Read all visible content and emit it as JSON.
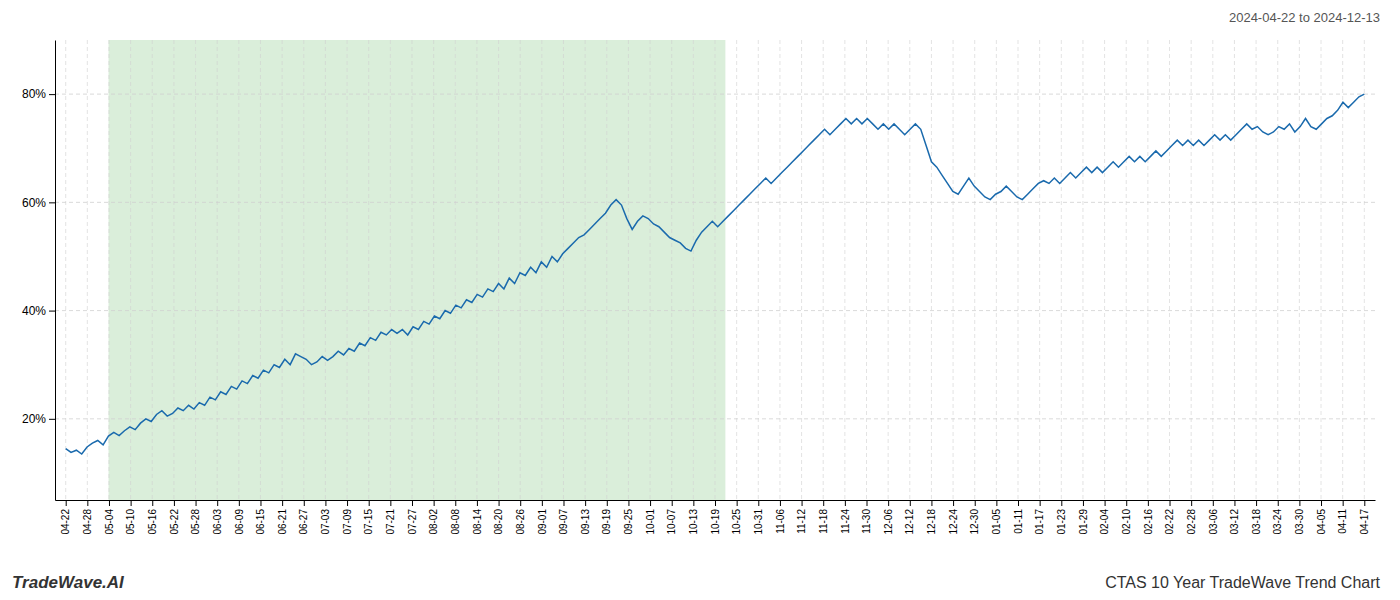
{
  "chart_data": {
    "type": "line",
    "title": "CTAS 10 Year TradeWave Trend Chart",
    "subtitle": "2024-04-22 to 2024-12-13",
    "annotations": [
      "TradeWave.AI"
    ],
    "color": "#1a6aad",
    "grid": true,
    "shaded_x": [
      8.019,
      123.444
    ],
    "shaded_color": "#daeeda",
    "xlim": [
      -2,
      245
    ],
    "xticks": [
      {
        "value": 0,
        "label": "04-22"
      },
      {
        "value": 4.05,
        "label": "04-28"
      },
      {
        "value": 8.1,
        "label": "05-04"
      },
      {
        "value": 12.15,
        "label": "05-10"
      },
      {
        "value": 16.2,
        "label": "05-16"
      },
      {
        "value": 20.25,
        "label": "05-22"
      },
      {
        "value": 24.3,
        "label": "05-28"
      },
      {
        "value": 28.35,
        "label": "06-03"
      },
      {
        "value": 32.4,
        "label": "06-09"
      },
      {
        "value": 36.45,
        "label": "06-15"
      },
      {
        "value": 40.5,
        "label": "06-21"
      },
      {
        "value": 44.55,
        "label": "06-27"
      },
      {
        "value": 48.6,
        "label": "07-03"
      },
      {
        "value": 52.65,
        "label": "07-09"
      },
      {
        "value": 56.7,
        "label": "07-15"
      },
      {
        "value": 60.75,
        "label": "07-21"
      },
      {
        "value": 64.8,
        "label": "07-27"
      },
      {
        "value": 68.85,
        "label": "08-02"
      },
      {
        "value": 72.9,
        "label": "08-08"
      },
      {
        "value": 76.95,
        "label": "08-14"
      },
      {
        "value": 81,
        "label": "08-20"
      },
      {
        "value": 85.05,
        "label": "08-26"
      },
      {
        "value": 89.1,
        "label": "09-01"
      },
      {
        "value": 93.15,
        "label": "09-07"
      },
      {
        "value": 97.2,
        "label": "09-13"
      },
      {
        "value": 101.25,
        "label": "09-19"
      },
      {
        "value": 105.3,
        "label": "09-25"
      },
      {
        "value": 109.35,
        "label": "10-01"
      },
      {
        "value": 113.4,
        "label": "10-07"
      },
      {
        "value": 117.45,
        "label": "10-13"
      },
      {
        "value": 121.5,
        "label": "10-19"
      },
      {
        "value": 125.55,
        "label": "10-25"
      },
      {
        "value": 129.6,
        "label": "10-31"
      },
      {
        "value": 133.65,
        "label": "11-06"
      },
      {
        "value": 137.7,
        "label": "11-12"
      },
      {
        "value": 141.75,
        "label": "11-18"
      },
      {
        "value": 145.8,
        "label": "11-24"
      },
      {
        "value": 149.85,
        "label": "11-30"
      },
      {
        "value": 153.9,
        "label": "12-06"
      },
      {
        "value": 157.95,
        "label": "12-12"
      },
      {
        "value": 162,
        "label": "12-18"
      },
      {
        "value": 166.05,
        "label": "12-24"
      },
      {
        "value": 170.1,
        "label": "12-30"
      },
      {
        "value": 174.15,
        "label": "01-05"
      },
      {
        "value": 178.2,
        "label": "01-11"
      },
      {
        "value": 182.25,
        "label": "01-17"
      },
      {
        "value": 186.3,
        "label": "01-23"
      },
      {
        "value": 190.35,
        "label": "01-29"
      },
      {
        "value": 194.4,
        "label": "02-04"
      },
      {
        "value": 198.45,
        "label": "02-10"
      },
      {
        "value": 202.5,
        "label": "02-16"
      },
      {
        "value": 206.55,
        "label": "02-22"
      },
      {
        "value": 210.6,
        "label": "02-28"
      },
      {
        "value": 214.65,
        "label": "03-06"
      },
      {
        "value": 218.7,
        "label": "03-12"
      },
      {
        "value": 222.75,
        "label": "03-18"
      },
      {
        "value": 226.8,
        "label": "03-24"
      },
      {
        "value": 230.85,
        "label": "03-30"
      },
      {
        "value": 234.9,
        "label": "04-05"
      },
      {
        "value": 238.95,
        "label": "04-11"
      },
      {
        "value": 243,
        "label": "04-17"
      }
    ],
    "ylim": [
      5,
      90
    ],
    "yticks": [
      {
        "value": 20,
        "label": "20%"
      },
      {
        "value": 40,
        "label": "40%"
      },
      {
        "value": 60,
        "label": "60%"
      },
      {
        "value": 80,
        "label": "80%"
      }
    ],
    "x": [
      0,
      1,
      2,
      3,
      4,
      5,
      6,
      7,
      8,
      9,
      10,
      11,
      12,
      13,
      14,
      15,
      16,
      17,
      18,
      19,
      20,
      21,
      22,
      23,
      24,
      25,
      26,
      27,
      28,
      29,
      30,
      31,
      32,
      33,
      34,
      35,
      36,
      37,
      38,
      39,
      40,
      41,
      42,
      43,
      44,
      45,
      46,
      47,
      48,
      49,
      50,
      51,
      52,
      53,
      54,
      55,
      56,
      57,
      58,
      59,
      60,
      61,
      62,
      63,
      64,
      65,
      66,
      67,
      68,
      69,
      70,
      71,
      72,
      73,
      74,
      75,
      76,
      77,
      78,
      79,
      80,
      81,
      82,
      83,
      84,
      85,
      86,
      87,
      88,
      89,
      90,
      91,
      92,
      93,
      94,
      95,
      96,
      97,
      98,
      99,
      100,
      101,
      102,
      103,
      104,
      105,
      106,
      107,
      108,
      109,
      110,
      111,
      112,
      113,
      114,
      115,
      116,
      117,
      118,
      119,
      120,
      121,
      122,
      123,
      124,
      125,
      126,
      127,
      128,
      129,
      130,
      131,
      132,
      133,
      134,
      135,
      136,
      137,
      138,
      139,
      140,
      141,
      142,
      143,
      144,
      145,
      146,
      147,
      148,
      149,
      150,
      151,
      152,
      153,
      154,
      155,
      156,
      157,
      158,
      159,
      160,
      161,
      162,
      163,
      164,
      165,
      166,
      167,
      168,
      169,
      170,
      171,
      172,
      173,
      174,
      175,
      176,
      177,
      178,
      179,
      180,
      181,
      182,
      183,
      184,
      185,
      186,
      187,
      188,
      189,
      190,
      191,
      192,
      193,
      194,
      195,
      196,
      197,
      198,
      199,
      200,
      201,
      202,
      203,
      204,
      205,
      206,
      207,
      208,
      209,
      210,
      211,
      212,
      213,
      214,
      215,
      216,
      217,
      218,
      219,
      220,
      221,
      222,
      223,
      224,
      225,
      226,
      227,
      228,
      229,
      230,
      231,
      232,
      233,
      234,
      235,
      236,
      237,
      238,
      239,
      240,
      241,
      242,
      243
    ],
    "values": [
      14.5,
      13.8,
      14.2,
      13.5,
      14.8,
      15.5,
      16.0,
      15.2,
      16.8,
      17.5,
      16.9,
      17.8,
      18.5,
      18.0,
      19.2,
      20.0,
      19.5,
      20.8,
      21.5,
      20.5,
      21.0,
      22.0,
      21.5,
      22.5,
      21.8,
      23.0,
      22.5,
      24.0,
      23.5,
      25.0,
      24.5,
      26.0,
      25.5,
      27.0,
      26.5,
      28.0,
      27.5,
      29.0,
      28.5,
      30.0,
      29.5,
      31.0,
      30.0,
      32.0,
      31.5,
      31.0,
      30.0,
      30.5,
      31.5,
      30.8,
      31.5,
      32.5,
      31.8,
      33.0,
      32.5,
      34.0,
      33.5,
      35.0,
      34.5,
      36.0,
      35.5,
      36.5,
      35.8,
      36.5,
      35.5,
      37.0,
      36.5,
      38.0,
      37.5,
      39.0,
      38.5,
      40.0,
      39.5,
      41.0,
      40.5,
      42.0,
      41.5,
      43.0,
      42.5,
      44.0,
      43.5,
      45.0,
      44.0,
      46.0,
      45.0,
      47.0,
      46.5,
      48.0,
      47.0,
      49.0,
      48.0,
      50.0,
      49.0,
      50.5,
      51.5,
      52.5,
      53.5,
      54.0,
      55.0,
      56.0,
      57.0,
      58.0,
      59.5,
      60.5,
      59.5,
      57.0,
      55.0,
      56.5,
      57.5,
      57.0,
      56.0,
      55.5,
      54.5,
      53.5,
      53.0,
      52.5,
      51.5,
      51.0,
      53.0,
      54.5,
      55.5,
      56.5,
      55.5,
      56.5,
      57.5,
      58.5,
      59.5,
      60.5,
      61.5,
      62.5,
      63.5,
      64.5,
      63.5,
      64.5,
      65.5,
      66.5,
      67.5,
      68.5,
      69.5,
      70.5,
      71.5,
      72.5,
      73.5,
      72.5,
      73.5,
      74.5,
      75.5,
      74.5,
      75.5,
      74.5,
      75.5,
      74.5,
      73.5,
      74.5,
      73.5,
      74.5,
      73.5,
      72.5,
      73.5,
      74.5,
      73.5,
      70.5,
      67.5,
      66.5,
      65.0,
      63.5,
      62.0,
      61.5,
      63.0,
      64.5,
      63.0,
      62.0,
      61.0,
      60.5,
      61.5,
      62.0,
      63.0,
      62.0,
      61.0,
      60.5,
      61.5,
      62.5,
      63.5,
      64.0,
      63.5,
      64.5,
      63.5,
      64.5,
      65.5,
      64.5,
      65.5,
      66.5,
      65.5,
      66.5,
      65.5,
      66.5,
      67.5,
      66.5,
      67.5,
      68.5,
      67.5,
      68.5,
      67.5,
      68.5,
      69.5,
      68.5,
      69.5,
      70.5,
      71.5,
      70.5,
      71.5,
      70.5,
      71.5,
      70.5,
      71.5,
      72.5,
      71.5,
      72.5,
      71.5,
      72.5,
      73.5,
      74.5,
      73.5,
      74.0,
      73.0,
      72.5,
      73.0,
      74.0,
      73.5,
      74.5,
      73.0,
      74.0,
      75.5,
      74.0,
      73.5,
      74.5,
      75.5,
      76.0,
      77.0,
      78.5,
      77.5,
      78.5,
      79.5,
      80.0
    ]
  }
}
